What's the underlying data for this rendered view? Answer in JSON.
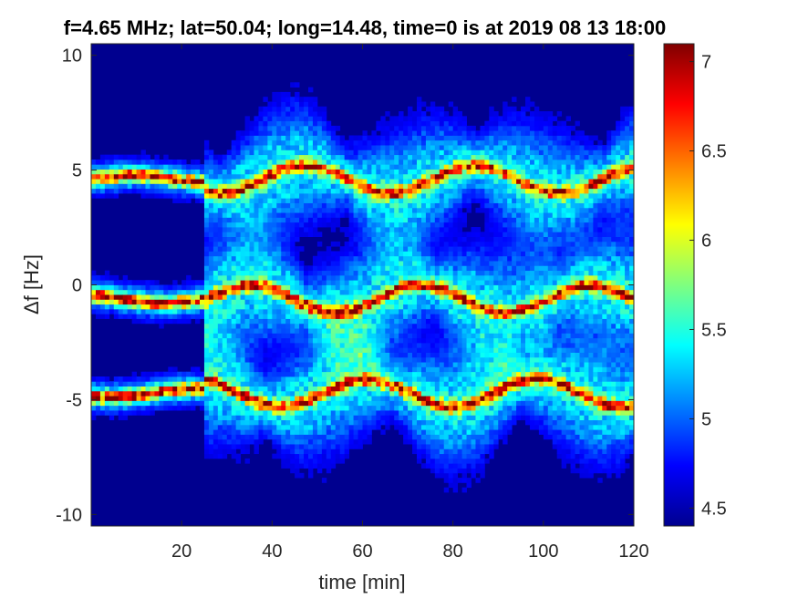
{
  "chart_data": {
    "type": "heatmap",
    "title": "f=4.65 MHz;  lat=50.04; long=14.48, time=0 is at 2019 08 13 18:00",
    "xlabel": "time [min]",
    "ylabel": "Δf [Hz]",
    "xlim": [
      0,
      120
    ],
    "ylim": [
      -10.5,
      10.5
    ],
    "xticks": [
      20,
      40,
      60,
      80,
      100,
      120
    ],
    "xtick_labels": [
      "20",
      "40",
      "60",
      "80",
      "100",
      "120"
    ],
    "yticks": [
      10,
      5,
      0,
      -5,
      -10
    ],
    "ytick_labels": [
      "10",
      "5",
      "0",
      "-5",
      "-10"
    ],
    "colorbar": {
      "limits": [
        4.4,
        7.1
      ],
      "ticks": [
        4.5,
        5,
        5.5,
        6,
        6.5,
        7
      ],
      "tick_labels": [
        "4.5",
        "5",
        "5.5",
        "6",
        "6.5",
        "7"
      ],
      "colormap": "jet"
    },
    "background_value": 4.5,
    "bands": [
      {
        "name": "upper",
        "center_hz": 4.6,
        "peak_value": 7.0
      },
      {
        "name": "middle",
        "center_hz": -0.6,
        "peak_value": 7.0
      },
      {
        "name": "lower",
        "center_hz": -4.7,
        "peak_value": 7.0
      }
    ],
    "grid": false
  }
}
